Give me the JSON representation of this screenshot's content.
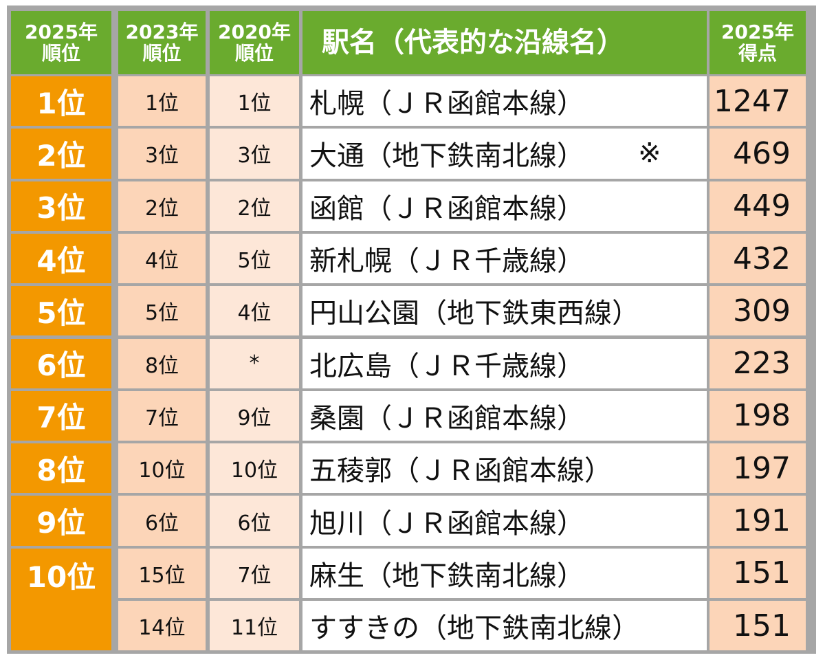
{
  "table": {
    "headers": {
      "rank_2025": [
        "2025年",
        "順位"
      ],
      "rank_2023": [
        "2023年",
        "順位"
      ],
      "rank_2020": [
        "2020年",
        "順位"
      ],
      "station": "駅名（代表的な沿線名）",
      "score_2025": [
        "2025年",
        "得点"
      ]
    },
    "rows": [
      {
        "rank_2025": "1位",
        "rank_2023": "1位",
        "rank_2020": "1位",
        "station": "札幌（ＪＲ函館本線）",
        "note": "",
        "score": "1247"
      },
      {
        "rank_2025": "2位",
        "rank_2023": "3位",
        "rank_2020": "3位",
        "station": "大通（地下鉄南北線）",
        "note": "※",
        "score": "469"
      },
      {
        "rank_2025": "3位",
        "rank_2023": "2位",
        "rank_2020": "2位",
        "station": "函館（ＪＲ函館本線）",
        "note": "",
        "score": "449"
      },
      {
        "rank_2025": "4位",
        "rank_2023": "4位",
        "rank_2020": "5位",
        "station": "新札幌（ＪＲ千歳線）",
        "note": "",
        "score": "432"
      },
      {
        "rank_2025": "5位",
        "rank_2023": "5位",
        "rank_2020": "4位",
        "station": "円山公園（地下鉄東西線）",
        "note": "",
        "score": "309"
      },
      {
        "rank_2025": "6位",
        "rank_2023": "8位",
        "rank_2020": "*",
        "station": "北広島（ＪＲ千歳線）",
        "note": "",
        "score": "223"
      },
      {
        "rank_2025": "7位",
        "rank_2023": "7位",
        "rank_2020": "9位",
        "station": "桑園（ＪＲ函館本線）",
        "note": "",
        "score": "198"
      },
      {
        "rank_2025": "8位",
        "rank_2023": "10位",
        "rank_2020": "10位",
        "station": "五稜郭（ＪＲ函館本線）",
        "note": "",
        "score": "197"
      },
      {
        "rank_2025": "9位",
        "rank_2023": "6位",
        "rank_2020": "6位",
        "station": "旭川（ＪＲ函館本線）",
        "note": "",
        "score": "191"
      },
      {
        "rank_2025": "10位",
        "rank_2023": "15位",
        "rank_2020": "7位",
        "station": "麻生（地下鉄南北線）",
        "note": "",
        "score": "151"
      },
      {
        "rank_2025": "",
        "rank_2023": "14位",
        "rank_2020": "11位",
        "station": "すすきの（地下鉄南北線）",
        "note": "",
        "score": "151"
      }
    ]
  },
  "chart_data": {
    "type": "table",
    "title": "",
    "columns": [
      "2025年順位",
      "2023年順位",
      "2020年順位",
      "駅名（代表的な沿線名）",
      "2025年得点"
    ],
    "categories": [
      "札幌（ＪＲ函館本線）",
      "大通（地下鉄南北線）",
      "函館（ＪＲ函館本線）",
      "新札幌（ＪＲ千歳線）",
      "円山公園（地下鉄東西線）",
      "北広島（ＪＲ千歳線）",
      "桑園（ＪＲ函館本線）",
      "五稜郭（ＪＲ函館本線）",
      "旭川（ＪＲ函館本線）",
      "麻生（地下鉄南北線）",
      "すすきの（地下鉄南北線）"
    ],
    "series": [
      {
        "name": "2025年順位",
        "values": [
          1,
          2,
          3,
          4,
          5,
          6,
          7,
          8,
          9,
          10,
          10
        ]
      },
      {
        "name": "2023年順位",
        "values": [
          1,
          3,
          2,
          4,
          5,
          8,
          7,
          10,
          6,
          15,
          14
        ]
      },
      {
        "name": "2020年順位",
        "values": [
          1,
          3,
          2,
          5,
          4,
          null,
          9,
          10,
          6,
          7,
          11
        ]
      },
      {
        "name": "2025年得点",
        "values": [
          1247,
          469,
          449,
          432,
          309,
          223,
          198,
          197,
          191,
          151,
          151
        ]
      }
    ],
    "notes": {
      "大通（地下鉄南北線）": "※",
      "北広島 2020年順位": "*"
    },
    "colors": {
      "header": "#6aab2e",
      "rank_2025": "#f39800",
      "rank_2023": "#fcd5b8",
      "rank_2020": "#fde7d8",
      "score": "#fcd5b8",
      "border": "#a6a6a6"
    }
  }
}
